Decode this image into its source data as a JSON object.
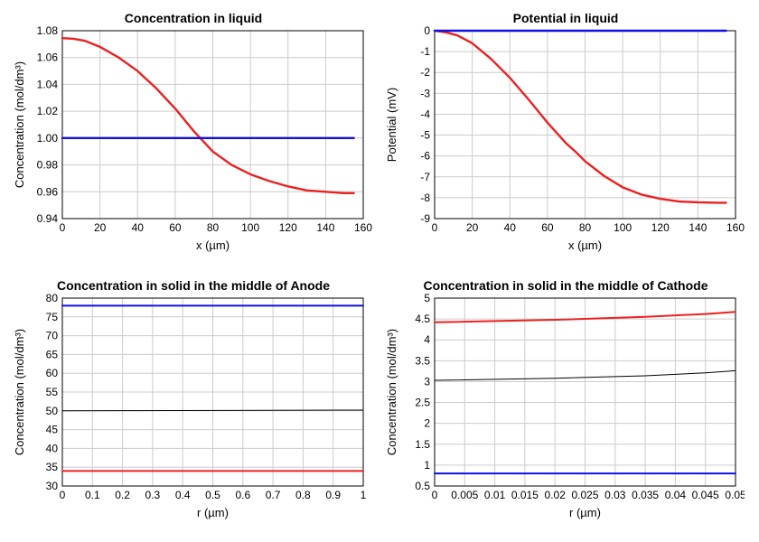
{
  "layout": {
    "rows": 2,
    "cols": 2,
    "gap_x": 8,
    "gap_y": 16,
    "bg": "#ffffff"
  },
  "typography": {
    "title_fontsize": 14,
    "title_weight": "bold",
    "label_fontsize": 13,
    "tick_fontsize": 12,
    "font_family": "Arial, Helvetica, sans-serif",
    "color": "#000000"
  },
  "colors": {
    "grid": "#cccccc",
    "axis": "#000000",
    "bg": "#ffffff",
    "red": "#ed2020",
    "blue": "#1010e6",
    "black": "#000000"
  },
  "plots": [
    {
      "id": "conc_liq",
      "title": "Concentration in liquid",
      "xlabel": "x (µm)",
      "ylabel": "Concentration (mol/dm³)",
      "xlim": [
        0,
        160
      ],
      "ylim": [
        0.94,
        1.08
      ],
      "xtick_step": 20,
      "ytick_step": 0.02,
      "xtick_fmt": "int",
      "ytick_fmt": "2f",
      "line_width": 2.4,
      "series": [
        {
          "color_key": "red",
          "points": [
            [
              0,
              1.0745
            ],
            [
              6,
              1.074
            ],
            [
              12,
              1.0725
            ],
            [
              20,
              1.068
            ],
            [
              30,
              1.06
            ],
            [
              40,
              1.05
            ],
            [
              50,
              1.037
            ],
            [
              60,
              1.022
            ],
            [
              70,
              1.005
            ],
            [
              80,
              0.99
            ],
            [
              90,
              0.98
            ],
            [
              100,
              0.973
            ],
            [
              110,
              0.968
            ],
            [
              120,
              0.964
            ],
            [
              130,
              0.961
            ],
            [
              140,
              0.96
            ],
            [
              150,
              0.959
            ],
            [
              155,
              0.959
            ]
          ]
        },
        {
          "color_key": "blue",
          "points": [
            [
              0,
              1.0
            ],
            [
              155,
              1.0
            ]
          ]
        }
      ]
    },
    {
      "id": "pot_liq",
      "title": "Potential in liquid",
      "xlabel": "x (µm)",
      "ylabel": "Potential (mV)",
      "xlim": [
        0,
        160
      ],
      "ylim": [
        -9,
        0
      ],
      "xtick_step": 20,
      "ytick_step": 1,
      "xtick_fmt": "int",
      "ytick_fmt": "int",
      "line_width": 2.4,
      "series": [
        {
          "color_key": "red",
          "points": [
            [
              0,
              0.0
            ],
            [
              6,
              -0.08
            ],
            [
              12,
              -0.22
            ],
            [
              20,
              -0.6
            ],
            [
              30,
              -1.35
            ],
            [
              40,
              -2.25
            ],
            [
              50,
              -3.3
            ],
            [
              60,
              -4.4
            ],
            [
              70,
              -5.4
            ],
            [
              75,
              -5.8
            ],
            [
              80,
              -6.25
            ],
            [
              90,
              -6.95
            ],
            [
              100,
              -7.5
            ],
            [
              110,
              -7.85
            ],
            [
              120,
              -8.05
            ],
            [
              130,
              -8.18
            ],
            [
              140,
              -8.22
            ],
            [
              150,
              -8.24
            ],
            [
              155,
              -8.24
            ]
          ]
        },
        {
          "color_key": "blue",
          "points": [
            [
              0,
              0.0
            ],
            [
              155,
              0.0
            ]
          ]
        }
      ]
    },
    {
      "id": "conc_anode",
      "title": "Concentration in solid in the middle of Anode",
      "xlabel": "r (µm)",
      "ylabel": "Concentration (mol/dm³)",
      "xlim": [
        0,
        1.0
      ],
      "ylim": [
        30,
        80
      ],
      "xtick_step": 0.1,
      "ytick_step": 5,
      "xtick_fmt": "1f",
      "ytick_fmt": "int",
      "line_width": 2.0,
      "series": [
        {
          "color_key": "blue",
          "points": [
            [
              0,
              78.0
            ],
            [
              1.0,
              78.0
            ]
          ]
        },
        {
          "color_key": "black",
          "line_width": 1.0,
          "points": [
            [
              0,
              50.0
            ],
            [
              1.0,
              50.2
            ]
          ]
        },
        {
          "color_key": "red",
          "points": [
            [
              0,
              34.0
            ],
            [
              1.0,
              34.0
            ]
          ]
        }
      ]
    },
    {
      "id": "conc_cathode",
      "title": "Concentration in solid in the middle of Cathode",
      "xlabel": "r (µm)",
      "ylabel": "Concentration (mol/dm³)",
      "xlim": [
        0,
        0.05
      ],
      "ylim": [
        0.5,
        5.0
      ],
      "xtick_step": 0.005,
      "ytick_step": 0.5,
      "xtick_fmt": "tight",
      "ytick_fmt": "1for_int",
      "line_width": 2.0,
      "series": [
        {
          "color_key": "red",
          "points": [
            [
              0,
              4.42
            ],
            [
              0.02,
              4.48
            ],
            [
              0.035,
              4.55
            ],
            [
              0.045,
              4.62
            ],
            [
              0.05,
              4.67
            ]
          ]
        },
        {
          "color_key": "black",
          "line_width": 1.0,
          "points": [
            [
              0,
              3.03
            ],
            [
              0.02,
              3.08
            ],
            [
              0.035,
              3.14
            ],
            [
              0.045,
              3.21
            ],
            [
              0.05,
              3.26
            ]
          ]
        },
        {
          "color_key": "blue",
          "points": [
            [
              0,
              0.8
            ],
            [
              0.05,
              0.8
            ]
          ]
        }
      ]
    }
  ]
}
